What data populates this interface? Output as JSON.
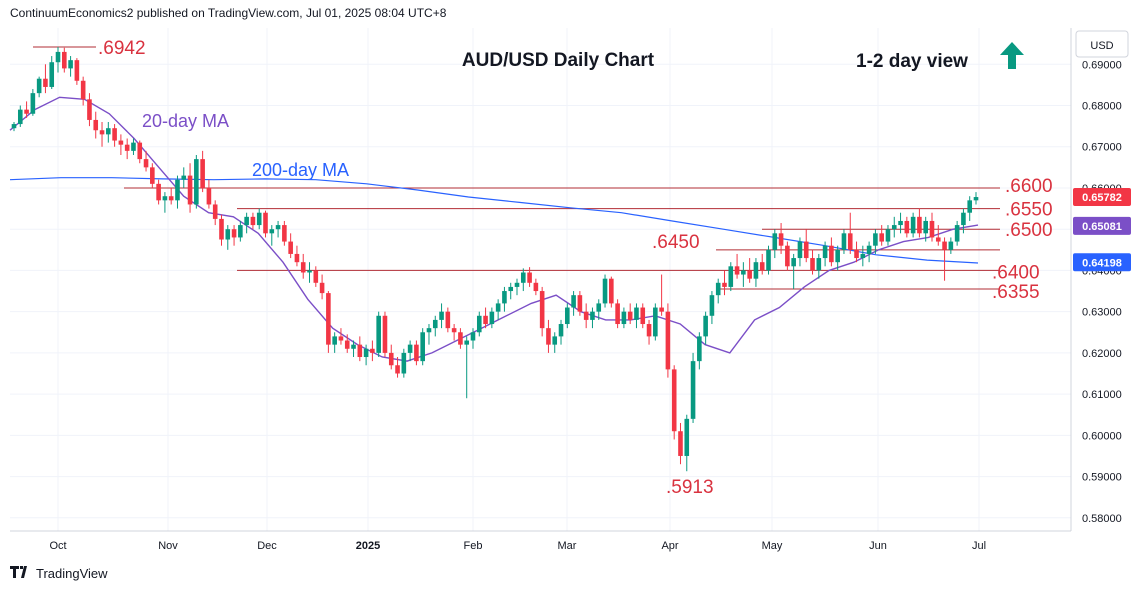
{
  "header": "ContinuumEconomics2 published on TradingView.com, Jul 01, 2025 08:04 UTC+8",
  "footer": {
    "logo_icon": "tradingview-logo-icon",
    "brand": "TradingView"
  },
  "chart_data": {
    "type": "candlestick",
    "title": "AUD/USD Daily Chart",
    "view_label": "1-2 day view",
    "view_icon": "arrow-up-icon",
    "currency": "USD",
    "ylim": [
      0.5768,
      0.6988
    ],
    "y_ticks": [
      "0.69000",
      "0.68000",
      "0.67000",
      "0.66000",
      "0.65000",
      "0.64000",
      "0.63000",
      "0.62000",
      "0.61000",
      "0.60000",
      "0.59000",
      "0.58000"
    ],
    "x_ticks": [
      "Oct",
      "Nov",
      "Dec",
      "2025",
      "Feb",
      "Mar",
      "Apr",
      "May",
      "Jun",
      "Jul"
    ],
    "colors": {
      "up": "#089981",
      "down": "#f23645",
      "ma20": "#7b4fc7",
      "ma200": "#2962ff",
      "levels": "#b22d35",
      "arrow": "#089981"
    },
    "price_labels": [
      {
        "value": "0.65782",
        "color": "#f23645"
      },
      {
        "value": "0.65081",
        "color": "#7b4fc7"
      },
      {
        "value": "0.64198",
        "color": "#2962ff"
      }
    ],
    "levels": [
      {
        "label": ".6600",
        "value": 0.66
      },
      {
        "label": ".6550",
        "value": 0.655
      },
      {
        "label": ".6500",
        "value": 0.65
      },
      {
        "label": ".6450",
        "value": 0.645
      },
      {
        "label": ".6400",
        "value": 0.64
      },
      {
        "label": ".6355",
        "value": 0.6355
      },
      {
        "label": ".6942",
        "value": 0.6942
      },
      {
        "label": ".5913",
        "value": 0.5913
      }
    ],
    "series": [
      {
        "name": "20-day MA",
        "values": [
          0.674,
          0.679,
          0.682,
          0.6815,
          0.678,
          0.672,
          0.665,
          0.658,
          0.654,
          0.653,
          0.649,
          0.642,
          0.633,
          0.626,
          0.622,
          0.619,
          0.618,
          0.62,
          0.623,
          0.626,
          0.629,
          0.632,
          0.634,
          0.63,
          0.628,
          0.628,
          0.629,
          0.627,
          0.622,
          0.62,
          0.628,
          0.631,
          0.636,
          0.64,
          0.642,
          0.645,
          0.647,
          0.648,
          0.65,
          0.651
        ]
      },
      {
        "name": "200-day MA",
        "values": [
          0.662,
          0.6625,
          0.6625,
          0.6622,
          0.662,
          0.6622,
          0.662,
          0.661,
          0.6595,
          0.6578,
          0.6565,
          0.6552,
          0.654,
          0.652,
          0.65,
          0.648,
          0.646,
          0.6438,
          0.6425,
          0.6418
        ]
      }
    ],
    "candles": [
      [
        0.6745,
        0.676,
        0.6738,
        0.6755
      ],
      [
        0.6755,
        0.68,
        0.6748,
        0.679
      ],
      [
        0.679,
        0.681,
        0.677,
        0.678
      ],
      [
        0.678,
        0.684,
        0.6775,
        0.683
      ],
      [
        0.683,
        0.687,
        0.682,
        0.6865
      ],
      [
        0.6865,
        0.69,
        0.683,
        0.6845
      ],
      [
        0.6845,
        0.692,
        0.684,
        0.6905
      ],
      [
        0.6905,
        0.6942,
        0.688,
        0.693
      ],
      [
        0.693,
        0.694,
        0.688,
        0.689
      ],
      [
        0.689,
        0.692,
        0.687,
        0.691
      ],
      [
        0.691,
        0.6915,
        0.685,
        0.686
      ],
      [
        0.686,
        0.687,
        0.68,
        0.6815
      ],
      [
        0.6815,
        0.683,
        0.675,
        0.6765
      ],
      [
        0.6765,
        0.6785,
        0.672,
        0.674
      ],
      [
        0.674,
        0.676,
        0.67,
        0.673
      ],
      [
        0.673,
        0.676,
        0.671,
        0.6745
      ],
      [
        0.6745,
        0.6755,
        0.67,
        0.6715
      ],
      [
        0.6715,
        0.673,
        0.668,
        0.6705
      ],
      [
        0.6705,
        0.672,
        0.667,
        0.669
      ],
      [
        0.669,
        0.672,
        0.668,
        0.671
      ],
      [
        0.671,
        0.6715,
        0.666,
        0.667
      ],
      [
        0.667,
        0.669,
        0.664,
        0.665
      ],
      [
        0.665,
        0.666,
        0.66,
        0.661
      ],
      [
        0.661,
        0.662,
        0.656,
        0.657
      ],
      [
        0.657,
        0.659,
        0.654,
        0.658
      ],
      [
        0.658,
        0.66,
        0.656,
        0.657
      ],
      [
        0.657,
        0.663,
        0.655,
        0.662
      ],
      [
        0.662,
        0.665,
        0.66,
        0.663
      ],
      [
        0.663,
        0.666,
        0.654,
        0.656
      ],
      [
        0.656,
        0.668,
        0.655,
        0.667
      ],
      [
        0.667,
        0.669,
        0.659,
        0.66
      ],
      [
        0.66,
        0.662,
        0.655,
        0.656
      ],
      [
        0.656,
        0.657,
        0.651,
        0.6525
      ],
      [
        0.6525,
        0.6535,
        0.646,
        0.6475
      ],
      [
        0.6475,
        0.651,
        0.645,
        0.65
      ],
      [
        0.65,
        0.651,
        0.646,
        0.648
      ],
      [
        0.648,
        0.652,
        0.647,
        0.651
      ],
      [
        0.651,
        0.654,
        0.649,
        0.653
      ],
      [
        0.653,
        0.654,
        0.65,
        0.651
      ],
      [
        0.651,
        0.655,
        0.65,
        0.654
      ],
      [
        0.654,
        0.6545,
        0.648,
        0.649
      ],
      [
        0.649,
        0.651,
        0.646,
        0.65
      ],
      [
        0.65,
        0.652,
        0.648,
        0.651
      ],
      [
        0.651,
        0.652,
        0.646,
        0.647
      ],
      [
        0.647,
        0.649,
        0.643,
        0.644
      ],
      [
        0.644,
        0.646,
        0.641,
        0.642
      ],
      [
        0.642,
        0.644,
        0.638,
        0.6395
      ],
      [
        0.6395,
        0.642,
        0.637,
        0.64
      ],
      [
        0.64,
        0.641,
        0.636,
        0.637
      ],
      [
        0.637,
        0.639,
        0.633,
        0.6345
      ],
      [
        0.6345,
        0.635,
        0.62,
        0.622
      ],
      [
        0.622,
        0.625,
        0.62,
        0.624
      ],
      [
        0.624,
        0.626,
        0.622,
        0.623
      ],
      [
        0.623,
        0.6245,
        0.62,
        0.621
      ],
      [
        0.621,
        0.623,
        0.619,
        0.622
      ],
      [
        0.622,
        0.624,
        0.618,
        0.619
      ],
      [
        0.619,
        0.622,
        0.617,
        0.621
      ],
      [
        0.621,
        0.623,
        0.618,
        0.62
      ],
      [
        0.62,
        0.63,
        0.619,
        0.629
      ],
      [
        0.629,
        0.63,
        0.619,
        0.62
      ],
      [
        0.62,
        0.622,
        0.616,
        0.617
      ],
      [
        0.617,
        0.619,
        0.614,
        0.615
      ],
      [
        0.615,
        0.621,
        0.614,
        0.62
      ],
      [
        0.62,
        0.623,
        0.618,
        0.622
      ],
      [
        0.622,
        0.623,
        0.617,
        0.618
      ],
      [
        0.618,
        0.626,
        0.617,
        0.625
      ],
      [
        0.625,
        0.627,
        0.622,
        0.626
      ],
      [
        0.626,
        0.629,
        0.624,
        0.628
      ],
      [
        0.628,
        0.632,
        0.626,
        0.63
      ],
      [
        0.63,
        0.631,
        0.625,
        0.626
      ],
      [
        0.626,
        0.627,
        0.623,
        0.625
      ],
      [
        0.625,
        0.626,
        0.621,
        0.622
      ],
      [
        0.622,
        0.624,
        0.609,
        0.623
      ],
      [
        0.623,
        0.626,
        0.621,
        0.625
      ],
      [
        0.625,
        0.63,
        0.624,
        0.629
      ],
      [
        0.629,
        0.631,
        0.626,
        0.627
      ],
      [
        0.627,
        0.631,
        0.626,
        0.63
      ],
      [
        0.63,
        0.633,
        0.628,
        0.632
      ],
      [
        0.632,
        0.636,
        0.63,
        0.635
      ],
      [
        0.635,
        0.637,
        0.633,
        0.636
      ],
      [
        0.636,
        0.638,
        0.634,
        0.637
      ],
      [
        0.637,
        0.6405,
        0.635,
        0.6395
      ],
      [
        0.6395,
        0.6408,
        0.636,
        0.637
      ],
      [
        0.637,
        0.638,
        0.634,
        0.635
      ],
      [
        0.635,
        0.636,
        0.624,
        0.626
      ],
      [
        0.626,
        0.628,
        0.62,
        0.622
      ],
      [
        0.622,
        0.625,
        0.62,
        0.624
      ],
      [
        0.624,
        0.628,
        0.622,
        0.627
      ],
      [
        0.627,
        0.632,
        0.626,
        0.631
      ],
      [
        0.631,
        0.635,
        0.629,
        0.634
      ],
      [
        0.634,
        0.635,
        0.629,
        0.63
      ],
      [
        0.63,
        0.632,
        0.626,
        0.628
      ],
      [
        0.628,
        0.631,
        0.626,
        0.63
      ],
      [
        0.63,
        0.633,
        0.628,
        0.632
      ],
      [
        0.632,
        0.639,
        0.631,
        0.638
      ],
      [
        0.638,
        0.6385,
        0.631,
        0.632
      ],
      [
        0.632,
        0.633,
        0.626,
        0.627
      ],
      [
        0.627,
        0.631,
        0.626,
        0.63
      ],
      [
        0.63,
        0.632,
        0.627,
        0.628
      ],
      [
        0.628,
        0.632,
        0.626,
        0.631
      ],
      [
        0.631,
        0.632,
        0.626,
        0.627
      ],
      [
        0.627,
        0.628,
        0.622,
        0.624
      ],
      [
        0.624,
        0.632,
        0.623,
        0.631
      ],
      [
        0.631,
        0.639,
        0.629,
        0.63
      ],
      [
        0.63,
        0.632,
        0.614,
        0.616
      ],
      [
        0.616,
        0.617,
        0.599,
        0.601
      ],
      [
        0.601,
        0.603,
        0.593,
        0.595
      ],
      [
        0.595,
        0.605,
        0.5913,
        0.604
      ],
      [
        0.604,
        0.62,
        0.603,
        0.618
      ],
      [
        0.618,
        0.625,
        0.616,
        0.624
      ],
      [
        0.624,
        0.63,
        0.622,
        0.629
      ],
      [
        0.629,
        0.635,
        0.627,
        0.634
      ],
      [
        0.634,
        0.638,
        0.632,
        0.637
      ],
      [
        0.637,
        0.64,
        0.634,
        0.636
      ],
      [
        0.636,
        0.642,
        0.635,
        0.641
      ],
      [
        0.641,
        0.644,
        0.638,
        0.639
      ],
      [
        0.639,
        0.642,
        0.636,
        0.64
      ],
      [
        0.64,
        0.643,
        0.637,
        0.638
      ],
      [
        0.638,
        0.643,
        0.636,
        0.642
      ],
      [
        0.642,
        0.644,
        0.639,
        0.64
      ],
      [
        0.64,
        0.646,
        0.639,
        0.645
      ],
      [
        0.645,
        0.65,
        0.643,
        0.649
      ],
      [
        0.649,
        0.6515,
        0.644,
        0.646
      ],
      [
        0.646,
        0.647,
        0.64,
        0.641
      ],
      [
        0.641,
        0.644,
        0.6355,
        0.643
      ],
      [
        0.643,
        0.648,
        0.641,
        0.647
      ],
      [
        0.647,
        0.65,
        0.642,
        0.643
      ],
      [
        0.643,
        0.645,
        0.639,
        0.64
      ],
      [
        0.64,
        0.644,
        0.638,
        0.643
      ],
      [
        0.643,
        0.647,
        0.641,
        0.646
      ],
      [
        0.646,
        0.648,
        0.641,
        0.642
      ],
      [
        0.642,
        0.646,
        0.64,
        0.645
      ],
      [
        0.645,
        0.65,
        0.644,
        0.649
      ],
      [
        0.649,
        0.654,
        0.644,
        0.645
      ],
      [
        0.645,
        0.647,
        0.642,
        0.643
      ],
      [
        0.643,
        0.646,
        0.641,
        0.644
      ],
      [
        0.644,
        0.647,
        0.642,
        0.646
      ],
      [
        0.646,
        0.65,
        0.644,
        0.649
      ],
      [
        0.649,
        0.651,
        0.646,
        0.647
      ],
      [
        0.647,
        0.651,
        0.646,
        0.65
      ],
      [
        0.65,
        0.653,
        0.648,
        0.651
      ],
      [
        0.651,
        0.654,
        0.649,
        0.652
      ],
      [
        0.652,
        0.653,
        0.648,
        0.649
      ],
      [
        0.649,
        0.654,
        0.648,
        0.653
      ],
      [
        0.653,
        0.655,
        0.648,
        0.649
      ],
      [
        0.649,
        0.653,
        0.647,
        0.652
      ],
      [
        0.652,
        0.654,
        0.647,
        0.648
      ],
      [
        0.648,
        0.651,
        0.646,
        0.647
      ],
      [
        0.647,
        0.648,
        0.6375,
        0.645
      ],
      [
        0.645,
        0.648,
        0.644,
        0.647
      ],
      [
        0.647,
        0.652,
        0.646,
        0.651
      ],
      [
        0.651,
        0.655,
        0.649,
        0.654
      ],
      [
        0.654,
        0.658,
        0.652,
        0.657
      ],
      [
        0.657,
        0.659,
        0.656,
        0.6578
      ]
    ]
  }
}
